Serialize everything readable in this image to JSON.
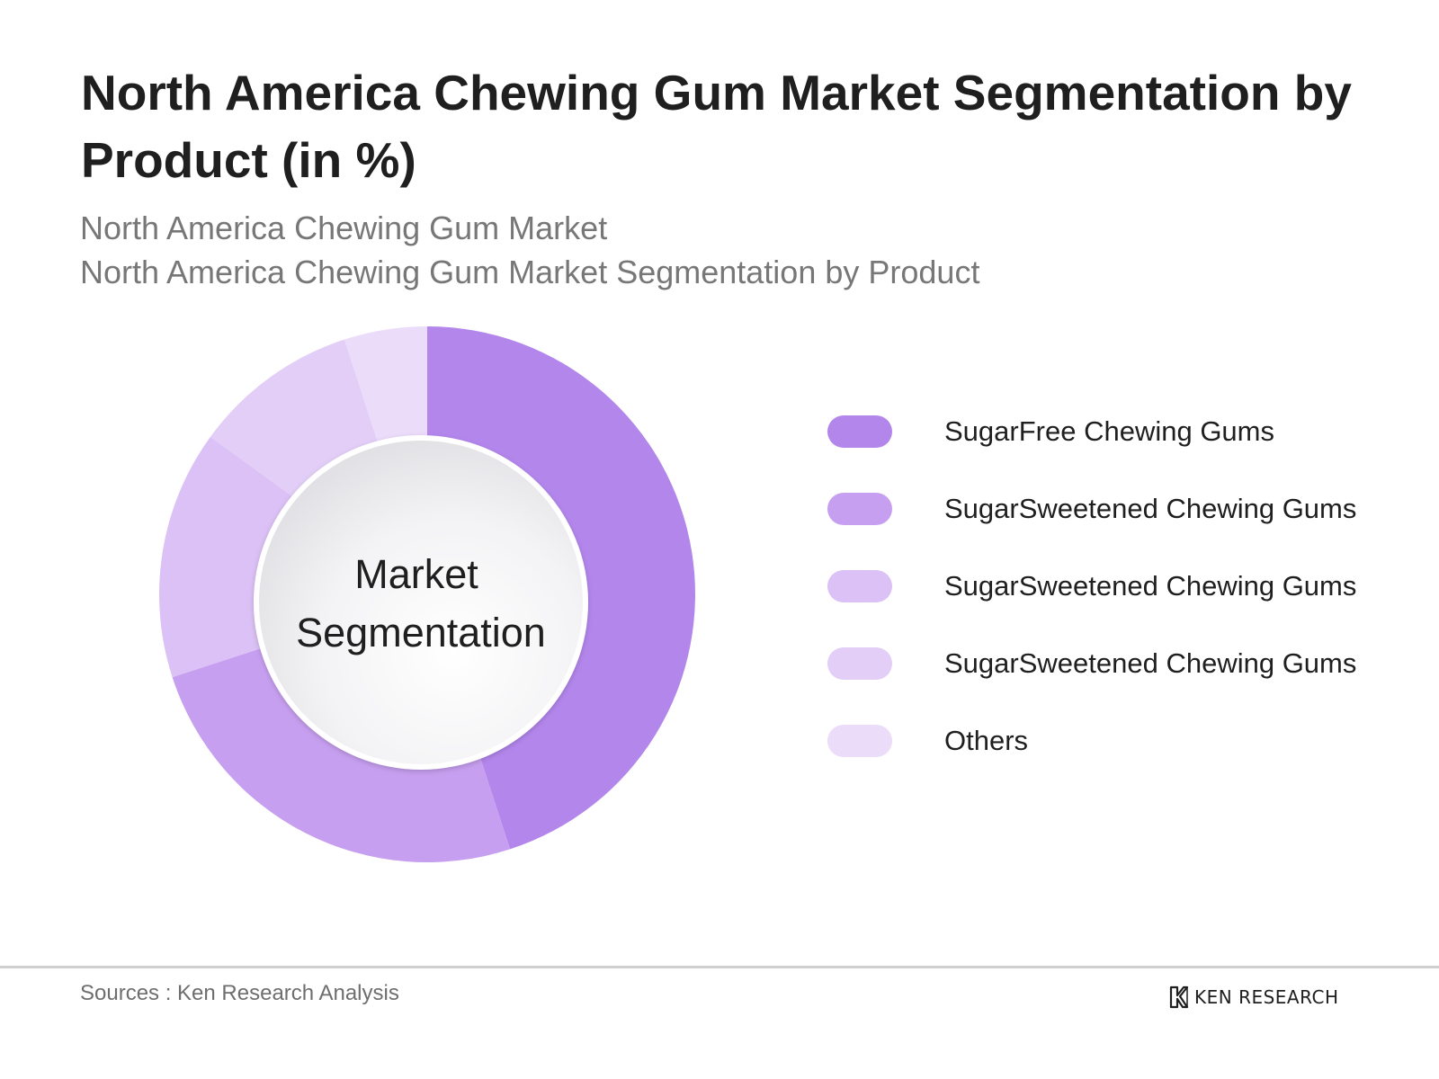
{
  "title": "North America Chewing Gum Market Segmentation by Product (in %)",
  "subtitle_1": "North America Chewing Gum Market",
  "subtitle_2": "North America Chewing Gum Market Segmentation by Product",
  "center_label": {
    "line1": "Market",
    "line2": "Segmentation"
  },
  "chart_data": {
    "type": "pie",
    "style": "donut",
    "categories": [
      "SugarFree Chewing Gums",
      "SugarSweetened Chewing Gums",
      "SugarSweetened Chewing Gums",
      "SugarSweetened Chewing Gums",
      "Others"
    ],
    "values": [
      45,
      25,
      15,
      10,
      5
    ],
    "colors": [
      "#b386ec",
      "#c79ff0",
      "#dbc1f5",
      "#e2cef7",
      "#ebdcfa"
    ],
    "legend_position": "right"
  },
  "source": "Sources : Ken Research Analysis",
  "brand": "KEN RESEARCH"
}
